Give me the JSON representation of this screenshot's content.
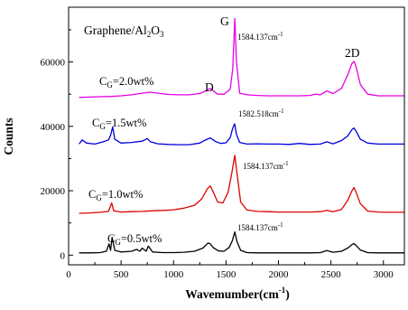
{
  "chart_data": {
    "type": "line",
    "title": "",
    "xlabel": "Wavemumber(cm",
    "xlabel_sup": "-1",
    "xlabel_end": ")",
    "ylabel": "Counts",
    "xlim": [
      0,
      3200
    ],
    "ylim": [
      -3000,
      77000
    ],
    "x_ticks": [
      0,
      500,
      1000,
      1500,
      2000,
      2500,
      3000
    ],
    "y_ticks": [
      0,
      20000,
      40000,
      60000
    ],
    "grid": false,
    "legend": {
      "main": "Graphene/Al",
      "sub": "2",
      "tail": "O",
      "sub2": "3"
    },
    "annotations": {
      "D": "D",
      "G": "G",
      "2D": "2D"
    },
    "series": [
      {
        "name": "C_G=2.0wt%",
        "label_main": "C",
        "label_sub": "G",
        "label_tail": "=2.0wt%",
        "color": "#e600e6",
        "peak_label": "1584.137cm",
        "peak_sup": "-1",
        "x": [
          100,
          200,
          300,
          400,
          500,
          600,
          700,
          780,
          850,
          950,
          1050,
          1150,
          1250,
          1300,
          1350,
          1380,
          1420,
          1480,
          1540,
          1565,
          1584,
          1600,
          1630,
          1700,
          1800,
          1900,
          2000,
          2100,
          2200,
          2300,
          2350,
          2400,
          2460,
          2520,
          2600,
          2660,
          2700,
          2720,
          2740,
          2780,
          2850,
          2950,
          3050,
          3150,
          3200
        ],
        "y": [
          49000,
          49100,
          49200,
          49300,
          49500,
          49800,
          50300,
          50600,
          50300,
          49900,
          49800,
          49800,
          50200,
          50900,
          51800,
          51000,
          50000,
          50000,
          51500,
          58000,
          73500,
          60000,
          50300,
          49800,
          49600,
          49500,
          49500,
          49500,
          49500,
          49600,
          50000,
          49800,
          51000,
          50200,
          51800,
          56000,
          59500,
          60200,
          58500,
          53000,
          50000,
          49500,
          49500,
          49500,
          49500
        ]
      },
      {
        "name": "C_G=1.5wt%",
        "label_main": "C",
        "label_sub": "G",
        "label_tail": "=1.5wt%",
        "color": "#0000dd",
        "peak_label": "1582.518cm",
        "peak_sup": "-1",
        "x": [
          100,
          130,
          170,
          250,
          330,
          380,
          400,
          420,
          440,
          500,
          600,
          700,
          750,
          780,
          850,
          950,
          1050,
          1150,
          1250,
          1300,
          1350,
          1400,
          1450,
          1500,
          1540,
          1565,
          1582,
          1600,
          1630,
          1700,
          1800,
          1900,
          2000,
          2100,
          2200,
          2300,
          2400,
          2460,
          2520,
          2600,
          2660,
          2700,
          2720,
          2740,
          2780,
          2850,
          2950,
          3050,
          3150,
          3200
        ],
        "y": [
          34500,
          35800,
          34800,
          34500,
          35200,
          35800,
          37200,
          39800,
          36000,
          34800,
          35000,
          35400,
          36200,
          35200,
          34600,
          34400,
          34300,
          34300,
          34800,
          35700,
          36400,
          35300,
          34700,
          34900,
          36500,
          39500,
          40800,
          37500,
          35000,
          34500,
          34600,
          34500,
          34500,
          34400,
          34700,
          34400,
          34500,
          35200,
          34600,
          35600,
          37000,
          39000,
          39500,
          38500,
          36000,
          34800,
          34500,
          34500,
          34500,
          34500
        ]
      },
      {
        "name": "C_G=1.0wt%",
        "label_main": "C",
        "label_sub": "G",
        "label_tail": "=1.0wt%",
        "color": "#dd0000",
        "peak_label": "1584.137cm",
        "peak_sup": "-1",
        "x": [
          100,
          200,
          300,
          380,
          410,
          430,
          500,
          600,
          700,
          800,
          900,
          1000,
          1100,
          1200,
          1270,
          1320,
          1350,
          1380,
          1420,
          1470,
          1520,
          1555,
          1584,
          1610,
          1640,
          1700,
          1800,
          1900,
          2000,
          2100,
          2200,
          2300,
          2400,
          2460,
          2520,
          2600,
          2660,
          2700,
          2720,
          2740,
          2780,
          2850,
          2950,
          3050,
          3150,
          3200
        ],
        "y": [
          13000,
          13100,
          13300,
          13600,
          16200,
          13800,
          13400,
          13500,
          13600,
          13800,
          13900,
          14100,
          14600,
          15500,
          17500,
          20500,
          21500,
          19500,
          16500,
          16200,
          19500,
          25500,
          31000,
          24000,
          16500,
          14000,
          13600,
          13500,
          13400,
          13400,
          13400,
          13400,
          13500,
          13900,
          13500,
          14200,
          17000,
          20000,
          21000,
          19500,
          16000,
          13700,
          13400,
          13300,
          13300,
          13300
        ]
      },
      {
        "name": "C_G=0.5wt%",
        "label_main": "C",
        "label_sub": "G",
        "label_tail": "=0.5wt%",
        "color": "#000000",
        "peak_label": "1584.137cm",
        "peak_sup": "-1",
        "x": [
          100,
          200,
          300,
          360,
          385,
          400,
          415,
          440,
          500,
          600,
          650,
          680,
          700,
          740,
          760,
          800,
          900,
          1000,
          1100,
          1200,
          1280,
          1330,
          1350,
          1380,
          1430,
          1480,
          1530,
          1560,
          1584,
          1605,
          1640,
          1700,
          1800,
          1900,
          2000,
          2100,
          2200,
          2300,
          2400,
          2460,
          2520,
          2600,
          2660,
          2700,
          2720,
          2740,
          2780,
          2850,
          2950,
          3050,
          3150,
          3200
        ],
        "y": [
          700,
          700,
          800,
          1200,
          3500,
          1500,
          5500,
          1500,
          1000,
          1200,
          1800,
          1200,
          2200,
          1200,
          2800,
          1000,
          800,
          800,
          900,
          1200,
          2200,
          3800,
          3500,
          2300,
          1300,
          1200,
          2400,
          4500,
          7200,
          4200,
          1500,
          800,
          700,
          700,
          700,
          700,
          700,
          700,
          800,
          1400,
          900,
          1200,
          2200,
          3300,
          3600,
          3000,
          1600,
          800,
          700,
          700,
          700,
          700
        ]
      }
    ]
  }
}
